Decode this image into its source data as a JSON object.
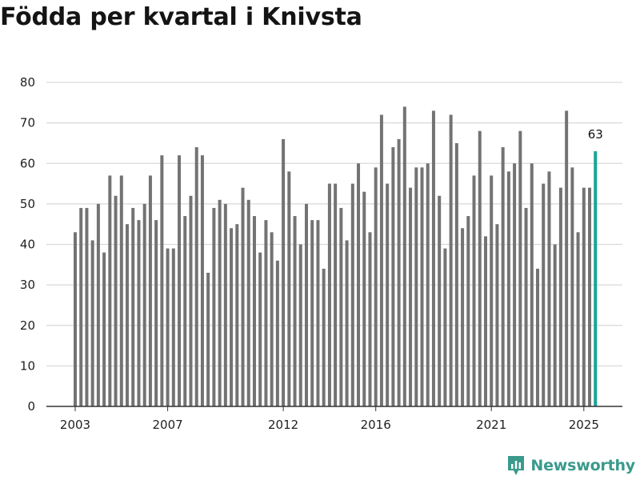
{
  "title": "Födda per kvartal i Knivsta",
  "brand": {
    "name": "Newsworthy",
    "icon": "newsworthy-logo-icon"
  },
  "colors": {
    "bar": "#737373",
    "highlight": "#17a597",
    "grid": "#d9d9d9",
    "axis": "#333333",
    "brand": "#3a9a8c"
  },
  "chart_data": {
    "type": "bar",
    "title": "Födda per kvartal i Knivsta",
    "xlabel": "",
    "ylabel": "",
    "ylim": [
      0,
      80
    ],
    "yticks": [
      0,
      10,
      20,
      30,
      40,
      50,
      60,
      70,
      80
    ],
    "grid": true,
    "start_year": 2003,
    "start_quarter": 1,
    "xtick_labels": [
      {
        "label": "2003",
        "index": 0
      },
      {
        "label": "2007",
        "index": 16
      },
      {
        "label": "2012",
        "index": 36
      },
      {
        "label": "2016",
        "index": 52
      },
      {
        "label": "2021",
        "index": 72
      },
      {
        "label": "2025",
        "index": 88
      }
    ],
    "values": [
      43,
      49,
      49,
      41,
      50,
      38,
      57,
      52,
      57,
      45,
      49,
      46,
      50,
      57,
      46,
      62,
      39,
      39,
      62,
      47,
      52,
      64,
      62,
      33,
      49,
      51,
      50,
      44,
      45,
      54,
      51,
      47,
      38,
      46,
      43,
      36,
      66,
      58,
      47,
      40,
      50,
      46,
      46,
      34,
      55,
      55,
      49,
      41,
      55,
      60,
      53,
      43,
      59,
      72,
      55,
      64,
      66,
      74,
      54,
      59,
      59,
      60,
      73,
      52,
      39,
      72,
      65,
      44,
      47,
      57,
      68,
      42,
      57,
      45,
      64,
      58,
      60,
      68,
      49,
      60,
      34,
      55,
      58,
      40,
      54,
      73,
      59,
      43,
      54,
      54,
      63
    ],
    "highlight_index": 90,
    "highlight_label": "63"
  }
}
